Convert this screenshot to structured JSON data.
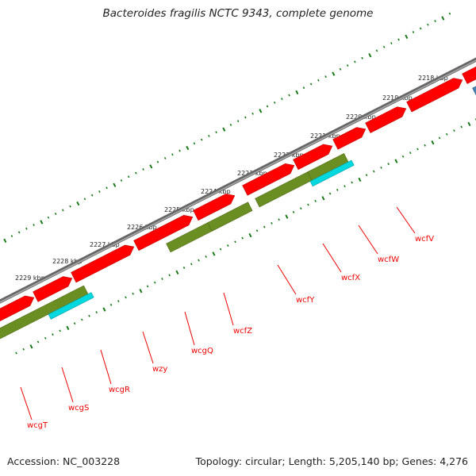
{
  "title": "Bacteroides fragilis NCTC 9343, complete genome",
  "accession": "Accession: NC_003228",
  "stats": "Topology: circular; Length: 5,205,140 bp; Genes: 4,276",
  "kbp_labels": [
    "2218 kbp",
    "2219 kbp",
    "2220 kbp",
    "2221 kbp",
    "2222 kbp",
    "2223 kbp",
    "2224 kbp",
    "2225 kbp",
    "2226 kbp",
    "2227 kbp",
    "2228 kbp",
    "2229 kbp"
  ],
  "gene_labels": [
    "wcfV",
    "wcfW",
    "wcfX",
    "wcfY",
    "wcfZ",
    "wcgQ",
    "wzy",
    "wcgR",
    "wcgS",
    "wcgT"
  ],
  "colors": {
    "cds": "#ff0000",
    "olive": "#6b8e23",
    "cyan": "#00d8e0",
    "blue": "#4682b4",
    "backbone": "#808080",
    "ticks": "#1a7a1a",
    "label": "#ee0000"
  }
}
